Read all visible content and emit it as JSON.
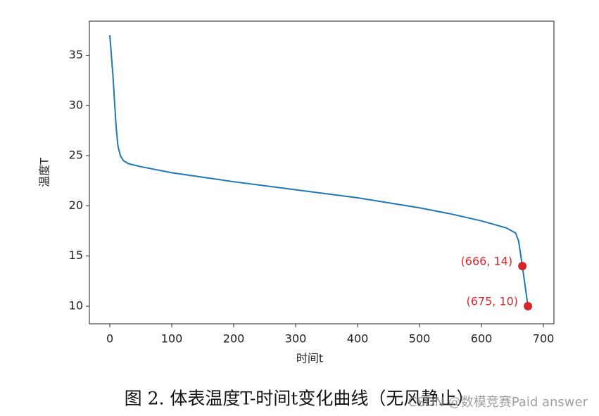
{
  "chart_data": {
    "type": "line",
    "xlabel": "时间t",
    "ylabel": "温度T",
    "x": [
      0,
      5,
      10,
      13,
      17,
      22,
      30,
      50,
      100,
      200,
      300,
      400,
      500,
      550,
      600,
      640,
      655,
      660,
      666,
      675
    ],
    "series": [
      {
        "color": "#1f77b4",
        "values": [
          37,
          33,
          28,
          26,
          25,
          24.5,
          24.2,
          23.9,
          23.3,
          22.4,
          21.6,
          20.8,
          19.8,
          19.2,
          18.5,
          17.8,
          17.3,
          16.5,
          14,
          10
        ]
      }
    ],
    "points": {
      "color": "#d62728",
      "x": [
        666,
        675
      ],
      "values": [
        14,
        10
      ],
      "labels": [
        "(666, 14)",
        "(675, 10)"
      ]
    },
    "xlim": [
      -33,
      717
    ],
    "ylim": [
      8.25,
      38.4
    ],
    "xticks": [
      0,
      100,
      200,
      300,
      400,
      500,
      600,
      700
    ],
    "yticks": [
      10,
      15,
      20,
      25,
      30,
      35
    ]
  },
  "caption": "图 2. 体表温度T-时间t变化曲线（无风静止）",
  "watermark": "CSDN @数模竞赛Paid answer"
}
